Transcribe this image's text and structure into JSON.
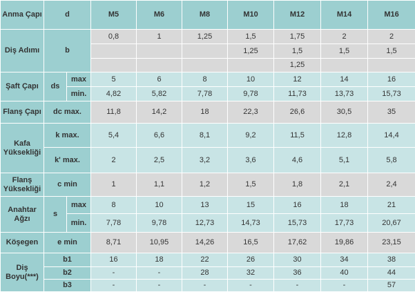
{
  "header": {
    "anma_capi": "Anma Çapı",
    "d": "d",
    "sizes": [
      "M5",
      "M6",
      "M8",
      "M10",
      "M12",
      "M14",
      "M16"
    ]
  },
  "dis_adimi": {
    "label": "Diş Adımı",
    "symbol": "b",
    "rows": [
      [
        "0,8",
        "1",
        "1,25",
        "1,5",
        "1,75",
        "2",
        "2"
      ],
      [
        "",
        "",
        "",
        "1,25",
        "1,5",
        "1,5",
        "1,5"
      ],
      [
        "",
        "",
        "",
        "",
        "1,25",
        "",
        ""
      ]
    ]
  },
  "saft_capi": {
    "label": "Şaft Çapı",
    "symbol": "ds",
    "max_label": "max",
    "min_label": "min.",
    "max": [
      "5",
      "6",
      "8",
      "10",
      "12",
      "14",
      "16"
    ],
    "min": [
      "4,82",
      "5,82",
      "7,78",
      "9,78",
      "11,73",
      "13,73",
      "15,73"
    ]
  },
  "flans_capi": {
    "label": "Flanş Çapı",
    "symbol": "dc max.",
    "values": [
      "11,8",
      "14,2",
      "18",
      "22,3",
      "26,6",
      "30,5",
      "35"
    ]
  },
  "kafa_yuksekligi": {
    "label": "Kafa Yüksekliği",
    "k_label": "k max.",
    "k": [
      "5,4",
      "6,6",
      "8,1",
      "9,2",
      "11,5",
      "12,8",
      "14,4"
    ],
    "k2_label": "k' max.",
    "k2": [
      "2",
      "2,5",
      "3,2",
      "3,6",
      "4,6",
      "5,1",
      "5,8"
    ]
  },
  "flans_yuksekligi": {
    "label": "Flanş Yüksekliği",
    "symbol": "c min",
    "values": [
      "1",
      "1,1",
      "1,2",
      "1,5",
      "1,8",
      "2,1",
      "2,4"
    ]
  },
  "anahtar_agzi": {
    "label": "Anahtar Ağzı",
    "symbol": "s",
    "max_label": "max",
    "min_label": "min.",
    "max": [
      "8",
      "10",
      "13",
      "15",
      "16",
      "18",
      "21"
    ],
    "min": [
      "7,78",
      "9,78",
      "12,73",
      "14,73",
      "15,73",
      "17,73",
      "20,67"
    ]
  },
  "kosegen": {
    "label": "Köşegen",
    "symbol": "e min",
    "values": [
      "8,71",
      "10,95",
      "14,26",
      "16,5",
      "17,62",
      "19,86",
      "23,15"
    ]
  },
  "dis_boyu": {
    "label": "Diş Boyu(***)",
    "b1_label": "b1",
    "b1": [
      "16",
      "18",
      "22",
      "26",
      "30",
      "34",
      "38"
    ],
    "b2_label": "b2",
    "b2": [
      "-",
      "-",
      "28",
      "32",
      "36",
      "40",
      "44"
    ],
    "b3_label": "b3",
    "b3": [
      "-",
      "-",
      "-",
      "-",
      "-",
      "-",
      "57"
    ]
  },
  "colors": {
    "teal": "#9ccfd0",
    "grey": "#d9d9d9",
    "light_teal": "#c8e4e5",
    "border": "#ffffff",
    "text": "#333333"
  }
}
